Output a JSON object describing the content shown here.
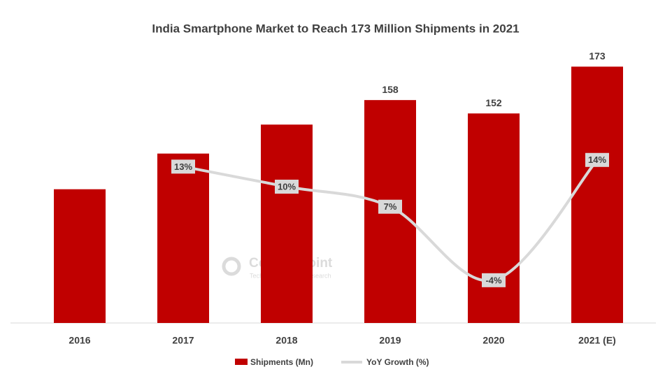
{
  "chart_data": {
    "type": "bar",
    "title": "India Smartphone Market to Reach 173 Million Shipments in 2021",
    "categories": [
      "2016",
      "2017",
      "2018",
      "2019",
      "2020",
      "2021 (E)"
    ],
    "series": [
      {
        "name": "Shipments (Mn)",
        "type": "bar",
        "color": "#c00000",
        "values": [
          118,
          134,
          147,
          158,
          152,
          173
        ],
        "value_labels": [
          null,
          null,
          null,
          "158",
          "152",
          "173"
        ]
      },
      {
        "name": "YoY Growth (%)",
        "type": "line",
        "axis": "y2",
        "color": "#d9d9d9",
        "values": [
          null,
          13,
          10,
          7,
          -4,
          14
        ],
        "value_labels": [
          null,
          "13%",
          "10%",
          "7%",
          "-4%",
          "14%"
        ]
      }
    ],
    "ylim": [
      58,
      180
    ],
    "y2lim": [
      -10.4,
      30.3
    ],
    "watermark": {
      "name": "Counterpoint",
      "tagline": "Technology Market Research"
    }
  }
}
